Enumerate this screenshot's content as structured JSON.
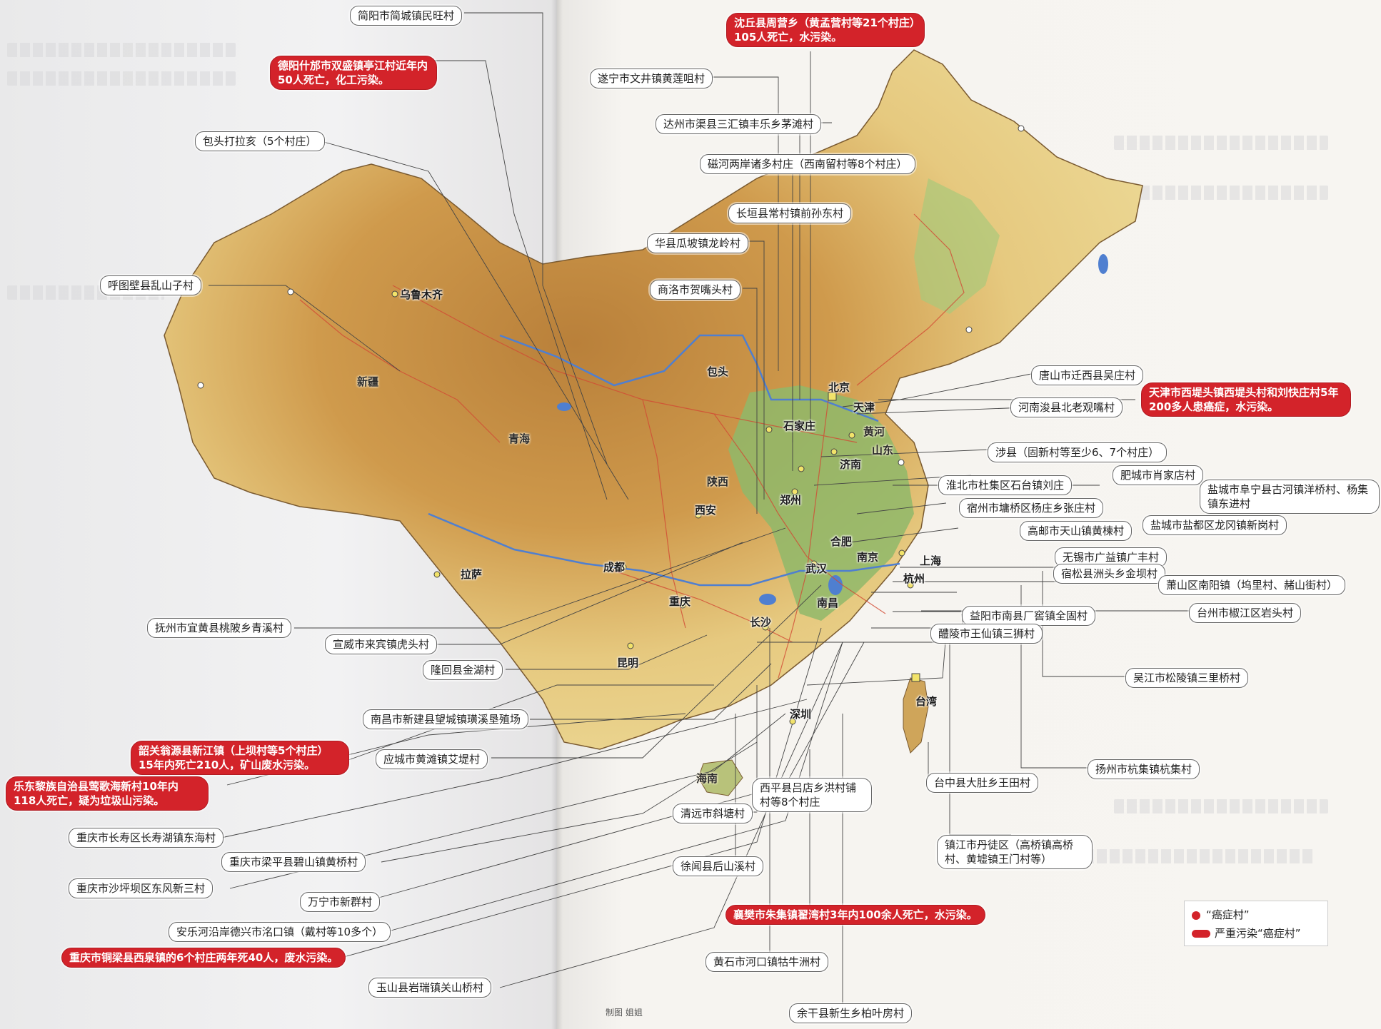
{
  "colors": {
    "red": "#d3232a",
    "land_low": "#8fb96a",
    "land_mid": "#e7d28a",
    "land_high": "#c48a3e",
    "water": "#4f7fd0",
    "road": "#d24a34"
  },
  "legend": {
    "cancer_village": "“癌症村”",
    "severe_cancer_village": "严重污染“癌症村”"
  },
  "credit": "制图  姐姐",
  "cities": {
    "urumqi": "乌鲁木齐",
    "lhasa": "拉萨",
    "chengdu": "成都",
    "chongqing": "重庆",
    "kunming": "昆明",
    "xian": "西安",
    "zhengzhou": "郑州",
    "wuhan": "武汉",
    "changsha": "长沙",
    "nanchang": "南昌",
    "hefei": "合肥",
    "nanjing": "南京",
    "shanghai": "上海",
    "hangzhou": "杭州",
    "beijing": "北京",
    "tianjin": "天津",
    "shijiazhuang": "石家庄",
    "jinan": "济南",
    "shenzhen": "深圳",
    "taiwan": "台湾",
    "baotou": "包头"
  },
  "provinces": {
    "xinjiang": "新疆",
    "qinghai": "青海",
    "shaanxi": "陕西",
    "huanghe": "黄河",
    "shandong": "山东",
    "hainan": "海南"
  },
  "labels": {
    "l01": "简阳市简城镇民旺村",
    "l02": "德阳什邡市双盛镇亭江村近年内50人死亡，化工污染。",
    "l03": "包头打拉亥（5个村庄）",
    "l04": "呼图壁县乱山子村",
    "l05": "抚州市宜黄县桃陂乡青溪村",
    "l06": "宣威市来宾镇虎头村",
    "l07": "隆回县金湖村",
    "l08": "南昌市新建县望城镇璜溪垦殖场",
    "l09": "韶关翁源县新江镇（上坝村等5个村庄）15年内死亡210人，矿山废水污染。",
    "l10": "应城市黄滩镇艾堤村",
    "l11": "乐东黎族自治县莺歌海新村10年内118人死亡，疑为垃圾山污染。",
    "l12": "重庆市长寿区长寿湖镇东海村",
    "l13": "重庆市梁平县碧山镇黄桥村",
    "l14": "重庆市沙坪坝区东风新三村",
    "l15": "万宁市新群村",
    "l16": "安乐河沿岸德兴市洺口镇（戴村等10多个）",
    "l17": "重庆市铜梁县西泉镇的6个村庄两年死40人，废水污染。",
    "l18": "玉山县岩瑞镇关山桥村",
    "l19": "沈丘县周营乡（黄孟营村等21个村庄）105人死亡，水污染。",
    "l20": "遂宁市文井镇黄莲咀村",
    "l21": "达州市渠县三汇镇丰乐乡茅滩村",
    "l22": "磁河两岸诸多村庄（西南留村等8个村庄）",
    "l23": "长垣县常村镇前孙东村",
    "l24": "华县瓜坡镇龙岭村",
    "l25": "商洛市贺嘴头村",
    "l26": "唐山市迁西县吴庄村",
    "l27": "天津市西堤头镇西堤头村和刘快庄村5年200多人患癌症，水污染。",
    "l28": "河南浚县北老观嘴村",
    "l29": "涉县（固新村等至少6、7个村庄）",
    "l30": "肥城市肖家店村",
    "l31": "淮北市杜集区石台镇刘庄",
    "l32": "盐城市阜宁县古河镇洋桥村、杨集镇东进村",
    "l33": "宿州市墉桥区杨庄乡张庄村",
    "l34": "盐城市盐都区龙冈镇新岗村",
    "l35": "高邮市天山镇黄楝村",
    "l36": "无锡市广益镇广丰村",
    "l37": "宿松县洲头乡金坝村",
    "l38": "萧山区南阳镇（坞里村、赭山街村）",
    "l39": "台州市椒江区岩头村",
    "l40": "益阳市南县厂窖镇全固村",
    "l41": "醴陵市王仙镇三狮村",
    "l42": "吴江市松陵镇三里桥村",
    "l43": "扬州市杭集镇杭集村",
    "l44": "台中县大肚乡王田村",
    "l45": "镇江市丹徒区（高桥镇高桥村、黄墟镇王门村等）",
    "l46": "西平县吕店乡洪村铺村等8个村庄",
    "l47": "清远市斜塘村",
    "l48": "徐闻县后山溪村",
    "l49": "襄樊市朱集镇翟湾村3年内100余人死亡，水污染。",
    "l50": "黄石市河口镇牯牛洲村",
    "l51": "余干县新生乡柏叶房村"
  }
}
